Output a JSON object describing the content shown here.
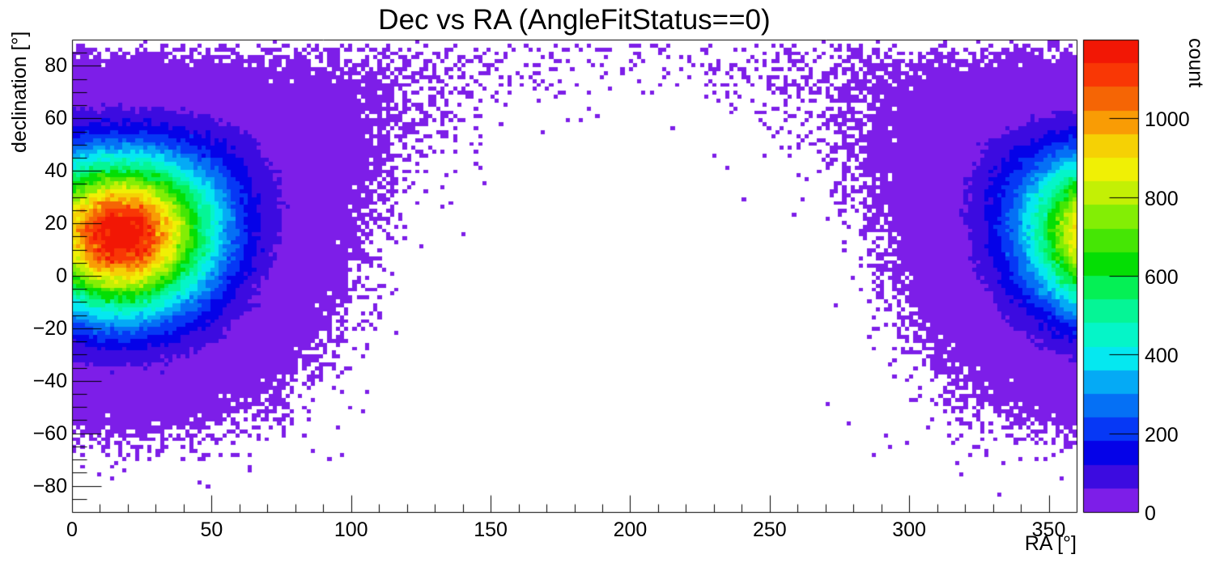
{
  "figure": {
    "background_color": "#ffffff",
    "frame_color": "#000000",
    "text_color": "#000000"
  },
  "chart_data": {
    "type": "heatmap",
    "title": "Dec vs RA (AngleFitStatus==0)",
    "xlabel": "RA [°]",
    "ylabel": "declination [°]",
    "zlabel": "count",
    "xlim": [
      0,
      360
    ],
    "ylim": [
      -90,
      90
    ],
    "zlim": [
      0,
      1200
    ],
    "x_bins": 240,
    "y_bins": 120,
    "grid": false,
    "legend_position": "right-colorbar",
    "x_ticks_major": [
      0,
      50,
      100,
      150,
      200,
      250,
      300,
      350
    ],
    "x_tick_labels": [
      "0",
      "50",
      "100",
      "150",
      "200",
      "250",
      "300",
      "350"
    ],
    "x_minor_step": 10,
    "y_ticks_major": [
      80,
      60,
      40,
      20,
      0,
      -20,
      -40,
      -60,
      -80
    ],
    "y_tick_labels": [
      "80",
      "60",
      "40",
      "20",
      "0",
      "−20",
      "−40",
      "−60",
      "−80"
    ],
    "y_minor_step": 5,
    "z_ticks": [
      0,
      200,
      400,
      600,
      800,
      1000
    ],
    "z_tick_labels": [
      "0",
      "200",
      "400",
      "600",
      "800",
      "1000"
    ],
    "counts_per_color_band": 60,
    "palette": [
      "#7d1ee8",
      "#3c0be0",
      "#0502e8",
      "#0638f5",
      "#0570f5",
      "#05aaf5",
      "#05e8f0",
      "#05f5c8",
      "#05f596",
      "#05f055",
      "#04de04",
      "#45e605",
      "#83ee05",
      "#c3f005",
      "#f0f005",
      "#f5d105",
      "#f99c05",
      "#f56505",
      "#f93705",
      "#f21705"
    ],
    "distribution": {
      "model": "gaussian_on_sphere_poisson",
      "center_ra_deg": 17.5,
      "center_dec_deg": 18,
      "sigma_deg": 22,
      "peak_mean_count": 1270,
      "solid_angle_weight": "cos(dec)",
      "ra_wraps": true,
      "max_bin_count": 1200,
      "empty_bins_color": "#ffffff",
      "seed": 1337
    }
  }
}
